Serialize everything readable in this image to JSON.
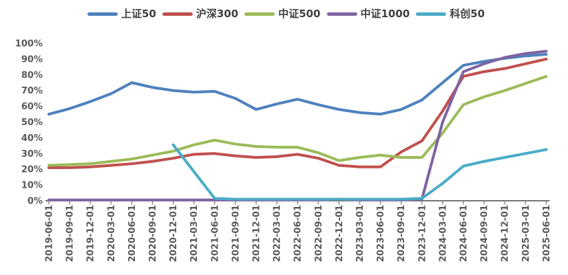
{
  "background_color": "#ffffff",
  "legend": {
    "position": "top",
    "items": [
      {
        "label": "上证50",
        "color": "#4F81BD"
      },
      {
        "label": "沪深300",
        "color": "#C0504D"
      },
      {
        "label": "中证500",
        "color": "#9BBB59"
      },
      {
        "label": "中证1000",
        "color": "#8064A2"
      },
      {
        "label": "科创50",
        "color": "#4BACC6"
      }
    ]
  },
  "chart_data": {
    "type": "line",
    "title": "",
    "xlabel": "",
    "ylabel": "",
    "grid": false,
    "legend_position": "top",
    "ylim": [
      0,
      100
    ],
    "y_ticks": [
      "0%",
      "10%",
      "20%",
      "30%",
      "40%",
      "50%",
      "60%",
      "70%",
      "80%",
      "90%",
      "100%"
    ],
    "x": [
      "2019-06-01",
      "2019-09-01",
      "2019-12-01",
      "2020-03-01",
      "2020-06-01",
      "2020-09-01",
      "2020-12-01",
      "2021-03-01",
      "2021-06-01",
      "2021-09-01",
      "2021-12-01",
      "2022-03-01",
      "2022-06-01",
      "2022-09-01",
      "2022-12-01",
      "2023-03-01",
      "2023-06-01",
      "2023-09-01",
      "2023-12-01",
      "2024-03-01",
      "2024-06-01",
      "2024-09-01",
      "2024-12-01",
      "2025-03-01",
      "2025-06-01"
    ],
    "series": [
      {
        "name": "上证50",
        "color": "#4F81BD",
        "values": [
          55,
          58.5,
          63,
          68,
          75,
          72,
          70,
          69,
          69.5,
          65,
          58,
          61.5,
          64.5,
          61,
          58,
          56,
          55,
          58,
          64,
          75,
          86,
          88.5,
          90.5,
          92,
          93
        ]
      },
      {
        "name": "沪深300",
        "color": "#C0504D",
        "values": [
          21,
          21,
          21.5,
          22.5,
          23.5,
          25,
          27,
          29.5,
          30,
          28.5,
          27.5,
          28,
          29.5,
          27,
          22.5,
          21.5,
          21.5,
          31,
          38,
          57,
          79,
          82,
          84,
          87,
          90
        ]
      },
      {
        "name": "中证500",
        "color": "#9BBB59",
        "values": [
          22.5,
          23,
          23.5,
          25,
          26.5,
          29,
          31.5,
          35.5,
          38.5,
          36,
          34.5,
          34,
          34,
          30.5,
          25.5,
          27.5,
          29,
          27.5,
          27.5,
          43,
          61,
          66,
          70,
          74.5,
          79
        ]
      },
      {
        "name": "中证1000",
        "color": "#8064A2",
        "values": [
          0.5,
          0.5,
          0.5,
          0.5,
          0.5,
          0.5,
          0.5,
          0.5,
          0.5,
          0.5,
          0.5,
          0.5,
          0.5,
          0.5,
          1,
          0.5,
          0.5,
          0.5,
          1,
          50,
          82,
          87,
          91,
          93.5,
          95
        ]
      },
      {
        "name": "科创50",
        "color": "#4BACC6",
        "values": [
          null,
          null,
          null,
          null,
          null,
          null,
          35.5,
          18.5,
          1.5,
          1,
          1,
          1,
          1,
          1,
          1,
          1,
          1,
          1,
          1.5,
          11,
          22,
          25,
          27.5,
          30,
          32.5
        ]
      }
    ],
    "axis_color": "#4a4a4a",
    "tick_color": "#8c8c8c",
    "label_color": "#595959"
  }
}
